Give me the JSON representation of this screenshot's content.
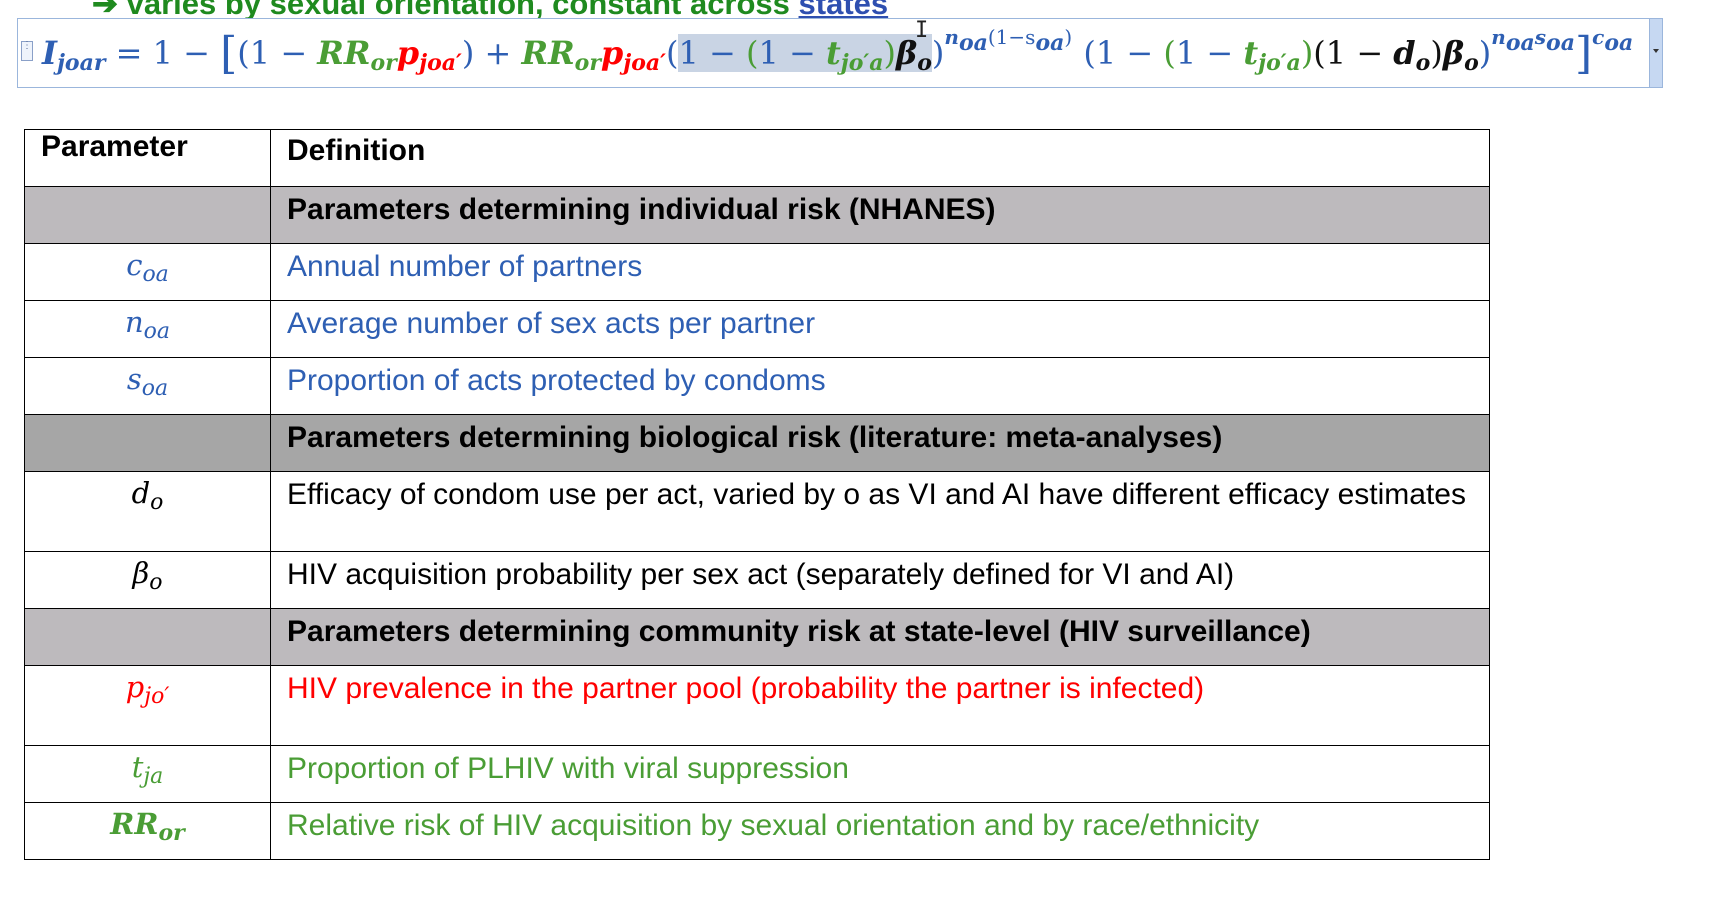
{
  "heading_fragment": {
    "arrow": "➔",
    "text": "varies by sexual orientation, constant across ",
    "underlined": "states"
  },
  "equation": {
    "lhs": "I",
    "lhs_sub": "joar",
    "eq_sign": " = ",
    "one": "1",
    "minus": " − ",
    "open_brack": "[",
    "close_brack": "]",
    "open_paren": "(",
    "close_paren": ")",
    "plus": " + ",
    "RR": "RR",
    "RR_sub": "or",
    "p": "p",
    "p_sub": "joa′",
    "t": "t",
    "t_sub": "jo′a",
    "d": "d",
    "d_sub": "o",
    "beta": "β",
    "beta_sub": "o",
    "exp1": "n",
    "exp1_sub": "oa",
    "exp1_rest": "(1−s",
    "exp1_rest_sub": "oa",
    "exp1_close": ")",
    "exp2": "n",
    "exp2_sub": "oa",
    "exp2_s": "s",
    "exp2_s_sub": "oa",
    "exp3": "c",
    "exp3_sub": "oa"
  },
  "table": {
    "header": {
      "param": "Parameter",
      "def": "Definition"
    },
    "rows": [
      {
        "type": "section",
        "def": "Parameters determining individual risk (NHANES)"
      },
      {
        "type": "row",
        "sym": "c",
        "sub": "oa",
        "def": "Annual number of partners",
        "color": "#2e5fb3"
      },
      {
        "type": "row",
        "sym": "n",
        "sub": "oa",
        "def": "Average number of sex acts per partner",
        "color": "#2e5fb3"
      },
      {
        "type": "row",
        "sym": "s",
        "sub": "oa",
        "def": "Proportion of acts protected by condoms",
        "color": "#2e5fb3"
      },
      {
        "type": "section",
        "def": "Parameters determining biological risk (literature: meta-analyses)"
      },
      {
        "type": "row",
        "sym": "d",
        "sub": "o",
        "def": "Efficacy of condom use per act, varied by o as VI and AI have different efficacy estimates",
        "color": "#000000"
      },
      {
        "type": "row",
        "sym": "β",
        "sub": "o",
        "def": "HIV acquisition probability per sex act (separately defined for VI and AI)",
        "color": "#000000"
      },
      {
        "type": "section",
        "def": "Parameters determining community risk at state-level (HIV surveillance)"
      },
      {
        "type": "row",
        "sym": "p",
        "sub": "jo′",
        "def": "HIV prevalence in the partner pool (probability the partner is infected)",
        "color": "#ff0000"
      },
      {
        "type": "row",
        "sym": "t",
        "sub": "ja",
        "def": "Proportion of PLHIV with viral suppression",
        "color": "#4a9d35"
      },
      {
        "type": "row",
        "sym": "RR",
        "sub": "or",
        "def": "Relative risk of HIV acquisition by sexual orientation and by race/ethnicity",
        "color": "#4a9d35"
      }
    ]
  }
}
